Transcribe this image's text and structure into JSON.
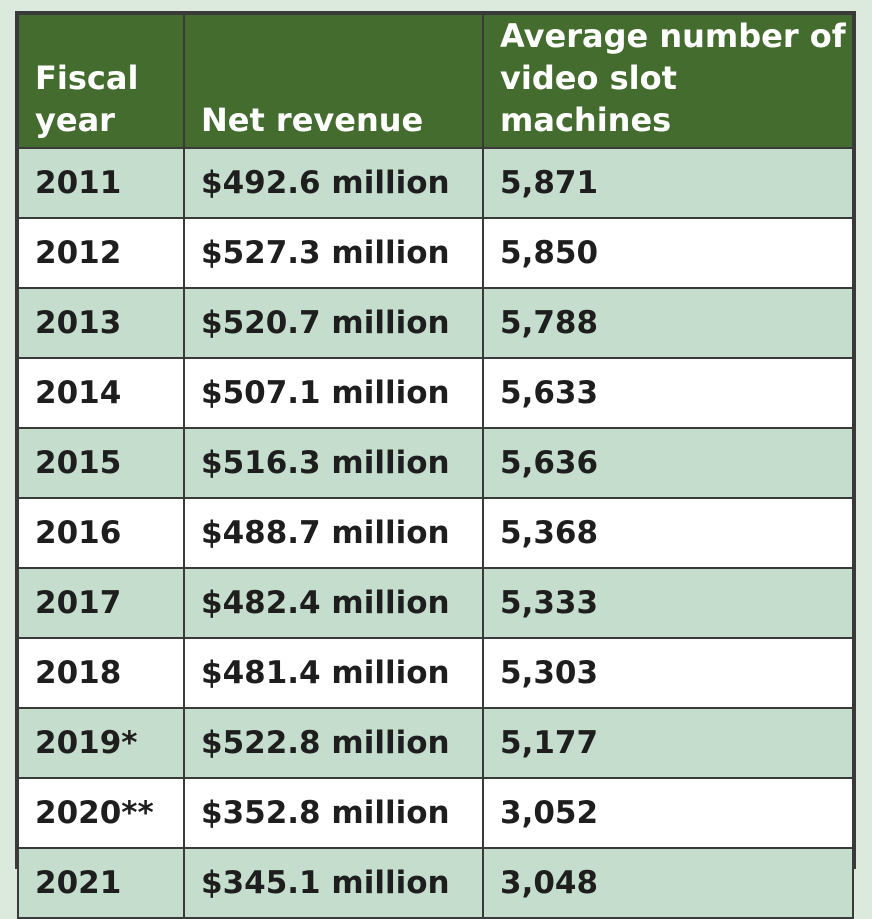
{
  "chart_data": {
    "type": "table",
    "columns": [
      "Fiscal\nyear",
      "Net revenue",
      "Average number of\nvideo slot machines"
    ],
    "rows": [
      [
        "2011",
        "$492.6 million",
        "5,871"
      ],
      [
        "2012",
        "$527.3 million",
        "5,850"
      ],
      [
        "2013",
        "$520.7 million",
        "5,788"
      ],
      [
        "2014",
        "$507.1 million",
        "5,633"
      ],
      [
        "2015",
        "$516.3 million",
        "5,636"
      ],
      [
        "2016",
        "$488.7 million",
        "5,368"
      ],
      [
        "2017",
        "$482.4 million",
        "5,333"
      ],
      [
        "2018",
        "$481.4 million",
        "5,303"
      ],
      [
        "2019*",
        "$522.8 million",
        "5,177"
      ],
      [
        "2020**",
        "$352.8 million",
        "3,052"
      ],
      [
        "2021",
        "$345.1 million",
        "3,048"
      ]
    ]
  },
  "colors": {
    "header_bg": "#436c2e",
    "row_shaded": "#c5ddcc",
    "row_plain": "#ffffff",
    "page_bg": "#dce9dd"
  }
}
